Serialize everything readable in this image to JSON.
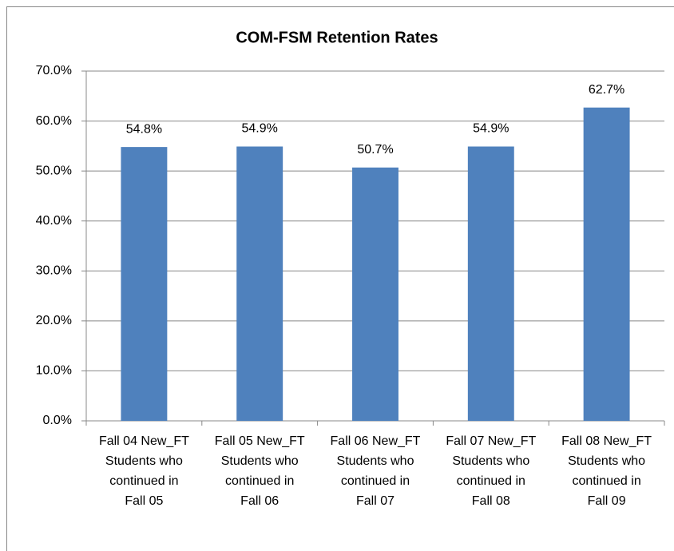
{
  "chart_data": {
    "type": "bar",
    "title": "COM-FSM Retention Rates",
    "categories": [
      [
        "Fall 04 New_FT",
        "Students who",
        "continued in",
        "Fall 05"
      ],
      [
        "Fall 05 New_FT",
        "Students who",
        "continued in",
        "Fall 06"
      ],
      [
        "Fall 06 New_FT",
        "Students who",
        "continued in",
        "Fall 07"
      ],
      [
        "Fall 07 New_FT",
        "Students who",
        "continued in",
        "Fall 08"
      ],
      [
        "Fall 08 New_FT",
        "Students who",
        "continued in",
        "Fall 09"
      ]
    ],
    "values": [
      54.8,
      54.9,
      50.7,
      54.9,
      62.7
    ],
    "value_labels": [
      "54.8%",
      "54.9%",
      "50.7%",
      "54.9%",
      "62.7%"
    ],
    "color": "#4f81bd",
    "ylim": [
      0,
      70
    ],
    "yticks": [
      {
        "value": 0,
        "label": "0.0%"
      },
      {
        "value": 10,
        "label": "10.0%"
      },
      {
        "value": 20,
        "label": "20.0%"
      },
      {
        "value": 30,
        "label": "30.0%"
      },
      {
        "value": 40,
        "label": "40.0%"
      },
      {
        "value": 50,
        "label": "50.0%"
      },
      {
        "value": 60,
        "label": "60.0%"
      },
      {
        "value": 70,
        "label": "70.0%"
      }
    ],
    "grid": true
  }
}
